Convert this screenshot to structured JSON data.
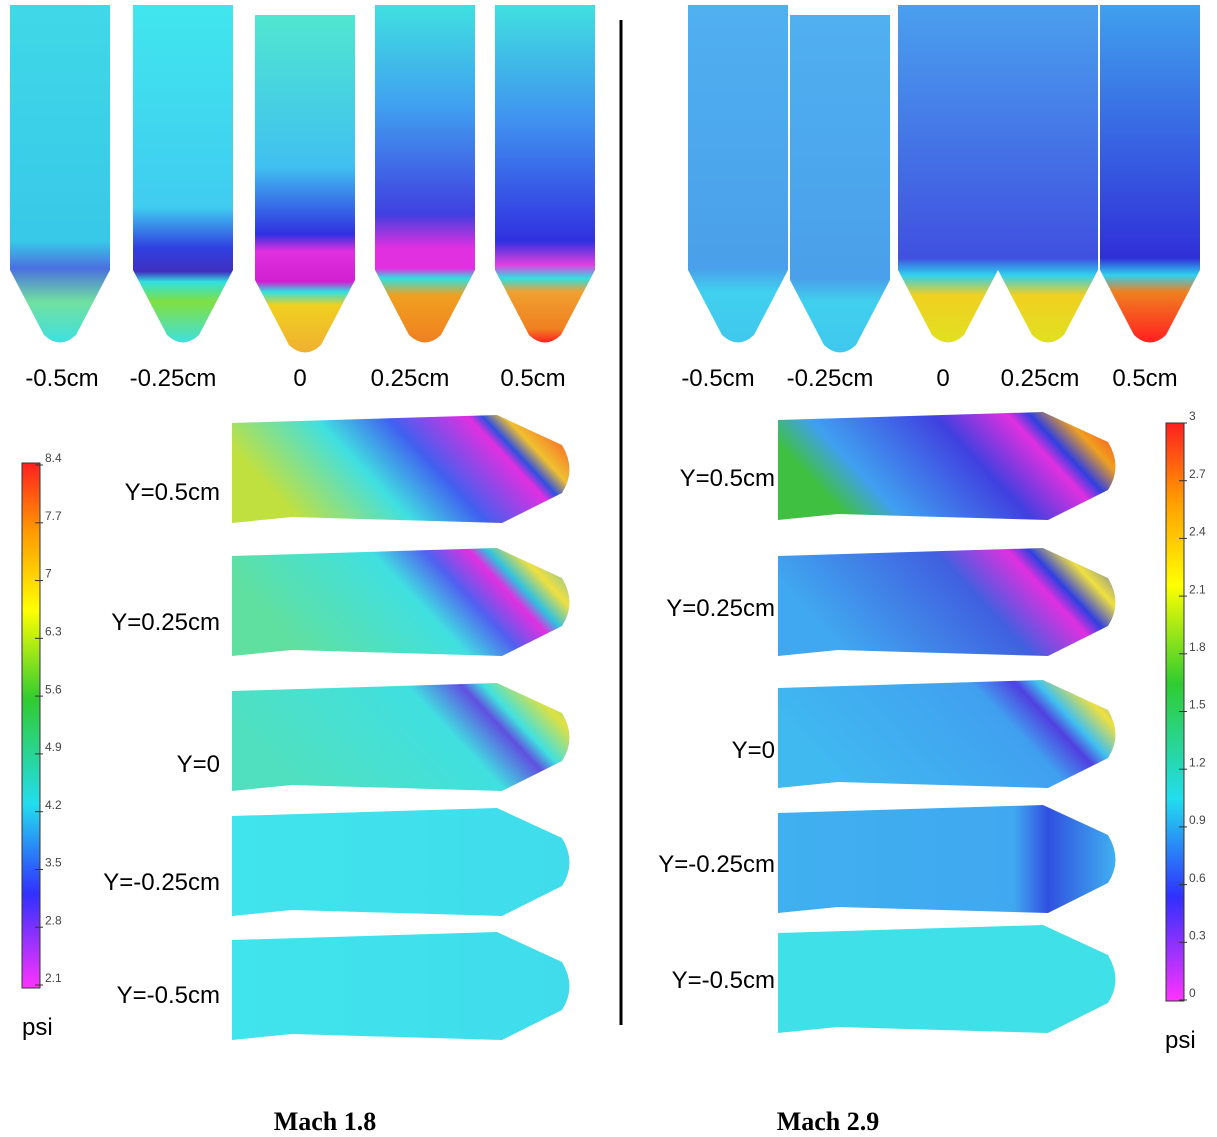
{
  "left_panel": {
    "spanwise_labels": [
      "-0.5cm",
      "-0.25cm",
      "0",
      "0.25cm",
      "0.5cm"
    ],
    "streamwise_labels": [
      "Y=0.5cm",
      "Y=0.25cm",
      "Y=0",
      "Y=-0.25cm",
      "Y=-0.5cm"
    ],
    "colorbar": {
      "ticks": [
        2.1,
        2.8,
        3.5,
        4.2,
        4.9,
        5.6,
        6.3,
        7,
        7.7,
        8.4
      ],
      "unit": "psi"
    },
    "caption": "Mach 1.8"
  },
  "right_panel": {
    "spanwise_labels": [
      "-0.5cm",
      "-0.25cm",
      "0",
      "0.25cm",
      "0.5cm"
    ],
    "streamwise_labels": [
      "Y=0.5cm",
      "Y=0.25cm",
      "Y=0",
      "Y=-0.25cm",
      "Y=-0.5cm"
    ],
    "colorbar": {
      "ticks": [
        0,
        0.3,
        0.6,
        0.9,
        1.2,
        1.5,
        1.8,
        2.1,
        2.4,
        2.7,
        3
      ],
      "unit": "psi"
    },
    "caption": "Mach 2.9"
  }
}
